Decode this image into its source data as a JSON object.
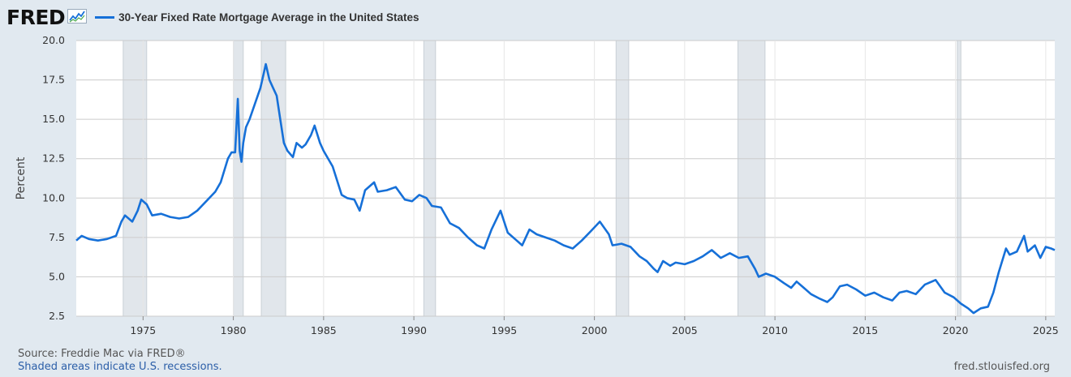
{
  "brand": {
    "logo": "FRED",
    "logo_icon": "fred-trend-icon"
  },
  "colors": {
    "series": "#1670d8",
    "recession": "#e1e6eb",
    "grid": "#cccccc",
    "background": "#e1e9f0"
  },
  "footer": {
    "source": "Source: Freddie Mac via FRED®",
    "recession_note": "Shaded areas indicate U.S. recessions.",
    "site": "fred.stlouisfed.org"
  },
  "chart_data": {
    "type": "line",
    "title": "30-Year Fixed Rate Mortgage Average in the United States",
    "ylabel": "Percent",
    "xlabel": "",
    "xlim": [
      1971.3,
      2025.5
    ],
    "ylim": [
      2.5,
      20.0
    ],
    "yticks": [
      2.5,
      5.0,
      7.5,
      10.0,
      12.5,
      15.0,
      17.5,
      20.0
    ],
    "ytick_labels": [
      "2.5",
      "5.0",
      "7.5",
      "10.0",
      "12.5",
      "15.0",
      "17.5",
      "20.0"
    ],
    "xticks": [
      1975,
      1980,
      1985,
      1990,
      1995,
      2000,
      2005,
      2010,
      2015,
      2020,
      2025
    ],
    "xtick_labels": [
      "1975",
      "1980",
      "1985",
      "1990",
      "1995",
      "2000",
      "2005",
      "2010",
      "2015",
      "2020",
      "2025"
    ],
    "grid": true,
    "legend_position": "top-left",
    "recessions": [
      [
        1973.9,
        1975.2
      ],
      [
        1980.0,
        1980.55
      ],
      [
        1981.55,
        1982.9
      ],
      [
        1990.55,
        1991.2
      ],
      [
        2001.2,
        2001.9
      ],
      [
        2007.95,
        2009.45
      ],
      [
        2020.1,
        2020.3
      ]
    ],
    "series": [
      {
        "name": "30-Year Fixed Rate Mortgage Average in the United States",
        "x": [
          1971.3,
          1971.6,
          1972.0,
          1972.5,
          1973.0,
          1973.5,
          1973.8,
          1974.0,
          1974.4,
          1974.7,
          1974.9,
          1975.2,
          1975.5,
          1976.0,
          1976.5,
          1977.0,
          1977.5,
          1978.0,
          1978.5,
          1979.0,
          1979.3,
          1979.7,
          1979.9,
          1980.1,
          1980.25,
          1980.35,
          1980.45,
          1980.55,
          1980.7,
          1980.9,
          1981.2,
          1981.5,
          1981.7,
          1981.8,
          1982.0,
          1982.2,
          1982.4,
          1982.6,
          1982.8,
          1983.0,
          1983.3,
          1983.5,
          1983.8,
          1984.0,
          1984.3,
          1984.5,
          1984.8,
          1985.0,
          1985.5,
          1986.0,
          1986.3,
          1986.7,
          1987.0,
          1987.3,
          1987.8,
          1988.0,
          1988.5,
          1989.0,
          1989.5,
          1989.9,
          1990.3,
          1990.7,
          1991.0,
          1991.5,
          1992.0,
          1992.5,
          1993.0,
          1993.5,
          1993.9,
          1994.3,
          1994.8,
          1995.2,
          1995.6,
          1996.0,
          1996.4,
          1996.8,
          1997.3,
          1997.8,
          1998.3,
          1998.8,
          1999.3,
          1999.8,
          2000.3,
          2000.8,
          2001.0,
          2001.5,
          2002.0,
          2002.5,
          2002.9,
          2003.3,
          2003.5,
          2003.8,
          2004.2,
          2004.5,
          2005.0,
          2005.5,
          2006.0,
          2006.5,
          2007.0,
          2007.5,
          2008.0,
          2008.5,
          2008.9,
          2009.1,
          2009.5,
          2010.0,
          2010.5,
          2010.9,
          2011.2,
          2011.6,
          2012.0,
          2012.5,
          2012.9,
          2013.2,
          2013.6,
          2014.0,
          2014.5,
          2015.0,
          2015.5,
          2016.0,
          2016.5,
          2016.9,
          2017.3,
          2017.8,
          2018.3,
          2018.9,
          2019.4,
          2019.9,
          2020.3,
          2020.7,
          2021.0,
          2021.4,
          2021.8,
          2022.1,
          2022.4,
          2022.8,
          2023.0,
          2023.4,
          2023.8,
          2024.0,
          2024.4,
          2024.7,
          2025.0,
          2025.3,
          2025.5
        ],
        "values": [
          7.3,
          7.6,
          7.4,
          7.3,
          7.4,
          7.6,
          8.5,
          8.9,
          8.5,
          9.2,
          9.9,
          9.6,
          8.9,
          9.0,
          8.8,
          8.7,
          8.8,
          9.2,
          9.8,
          10.4,
          11.0,
          12.5,
          12.9,
          12.9,
          16.3,
          13.0,
          12.3,
          13.5,
          14.5,
          15.0,
          16.0,
          17.0,
          18.0,
          18.5,
          17.5,
          17.0,
          16.5,
          15.0,
          13.5,
          13.0,
          12.6,
          13.5,
          13.2,
          13.4,
          14.0,
          14.6,
          13.5,
          13.0,
          12.0,
          10.2,
          10.0,
          9.9,
          9.2,
          10.5,
          11.0,
          10.4,
          10.5,
          10.7,
          9.9,
          9.8,
          10.2,
          10.0,
          9.5,
          9.4,
          8.4,
          8.1,
          7.5,
          7.0,
          6.8,
          8.0,
          9.2,
          7.8,
          7.4,
          7.0,
          8.0,
          7.7,
          7.5,
          7.3,
          7.0,
          6.8,
          7.3,
          7.9,
          8.5,
          7.7,
          7.0,
          7.1,
          6.9,
          6.3,
          6.0,
          5.5,
          5.3,
          6.0,
          5.7,
          5.9,
          5.8,
          6.0,
          6.3,
          6.7,
          6.2,
          6.5,
          6.2,
          6.3,
          5.5,
          5.0,
          5.2,
          5.0,
          4.6,
          4.3,
          4.7,
          4.3,
          3.9,
          3.6,
          3.4,
          3.7,
          4.4,
          4.5,
          4.2,
          3.8,
          4.0,
          3.7,
          3.5,
          4.0,
          4.1,
          3.9,
          4.5,
          4.8,
          4.0,
          3.7,
          3.3,
          3.0,
          2.7,
          3.0,
          3.1,
          4.0,
          5.3,
          6.8,
          6.4,
          6.6,
          7.6,
          6.6,
          7.0,
          6.2,
          6.9,
          6.8,
          6.7
        ]
      }
    ]
  }
}
